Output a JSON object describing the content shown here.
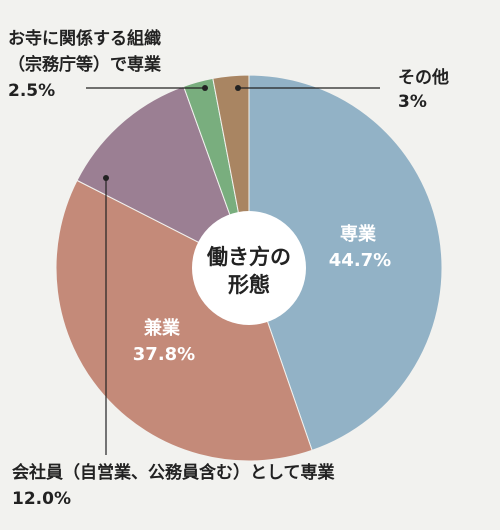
{
  "chart_data": {
    "type": "pie",
    "variant": "donut",
    "center_label": [
      "働き方の",
      "形態"
    ],
    "slices": [
      {
        "label": "専業",
        "percent_text": "44.7%",
        "value": 44.7,
        "color": "#92b2c6"
      },
      {
        "label": "兼業",
        "percent_text": "37.8%",
        "value": 37.8,
        "color": "#c48a79"
      },
      {
        "label": "会社員（自営業、公務員含む）として専業",
        "percent_text": "12.0%",
        "value": 12.0,
        "color": "#9b7f93"
      },
      {
        "label_lines": [
          "お寺に関係する組織",
          "（宗務庁等）で専業"
        ],
        "percent_text": "2.5%",
        "value": 2.5,
        "color": "#79ae7e"
      },
      {
        "label": "その他",
        "percent_text": "3%",
        "value": 3.0,
        "color": "#a98562"
      }
    ]
  }
}
